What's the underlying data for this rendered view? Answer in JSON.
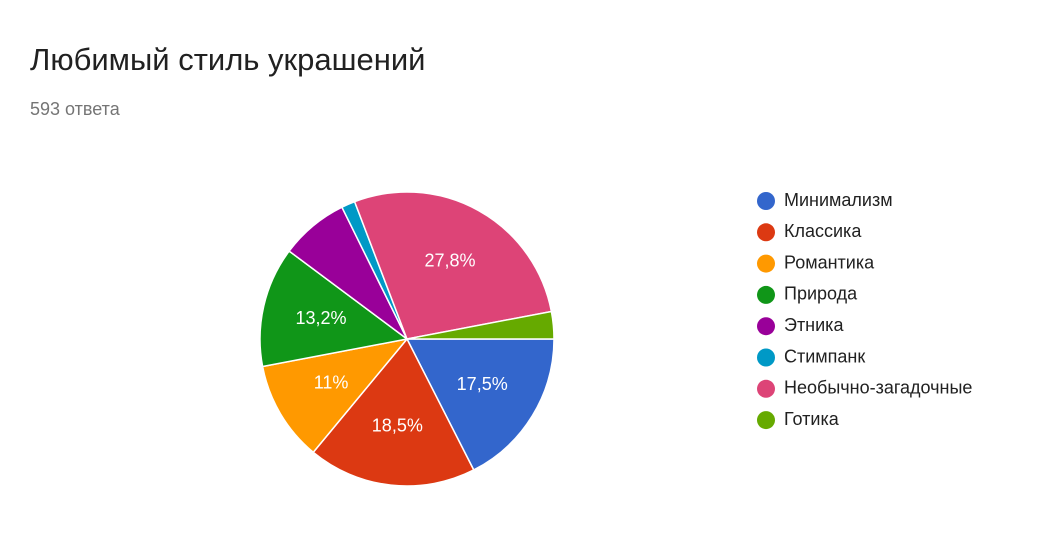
{
  "chart_data": {
    "type": "pie",
    "title": "Любимый стиль украшений",
    "subtitle": "593 ответа",
    "categories": [
      "Минимализм",
      "Классика",
      "Романтика",
      "Природа",
      "Этника",
      "Стимпанк",
      "Необычно-загадочные",
      "Готика"
    ],
    "values": [
      17.5,
      18.5,
      11,
      13.2,
      7.5,
      1.5,
      27.8,
      3
    ],
    "value_labels": [
      "17,5%",
      "18,5%",
      "11%",
      "13,2%",
      null,
      null,
      "27,8%",
      null
    ],
    "colors": [
      "#3366cc",
      "#dc3912",
      "#ff9900",
      "#109618",
      "#990099",
      "#0099c6",
      "#dd4477",
      "#66aa00"
    ],
    "legend": "right"
  }
}
